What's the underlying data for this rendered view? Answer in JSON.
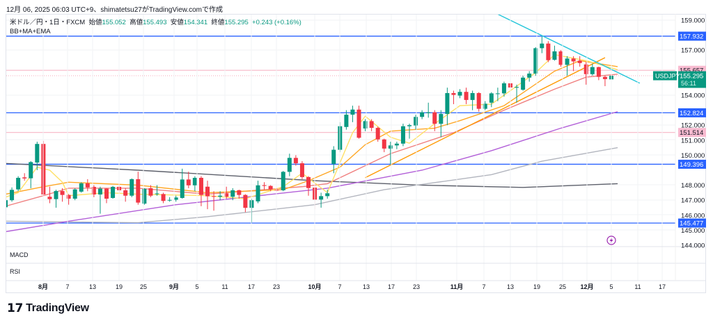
{
  "attribution": "12月 06, 2025 06:03 UTC+9、shimatetsu27がTradingView.comで作成",
  "legend": {
    "symbol_line": "米ドル／円・1日・FXCM",
    "open_label": "始値",
    "open": "155.052",
    "high_label": "高値",
    "high": "155.493",
    "low_label": "安値",
    "low": "154.341",
    "close_label": "終値",
    "close": "155.295",
    "change": "+0.243 (+0.16%)",
    "indicators": "BB+MA+EMA"
  },
  "panes": {
    "macd": "MACD",
    "rsi": "RSI"
  },
  "logo": "TradingView",
  "colors": {
    "up": "#089981",
    "down": "#f23645",
    "support": "#2962ff",
    "pink_level": "#f7b6c6",
    "trendline": "#26c6da"
  },
  "chart_data": {
    "type": "candlestick",
    "symbol": "USDJPY",
    "last_price": "155.295",
    "countdown": "56:11",
    "y_ticks": [
      "159.000",
      "157.000",
      "154.000",
      "152.000",
      "151.000",
      "150.000",
      "148.000",
      "147.000",
      "146.000",
      "145.000",
      "144.000"
    ],
    "ylim": [
      143.9,
      159.5
    ],
    "x_ticks": [
      "8月",
      "7",
      "13",
      "19",
      "25",
      "9月",
      "5",
      "11",
      "17",
      "23",
      "10月",
      "7",
      "13",
      "17",
      "23",
      "11月",
      "7",
      "13",
      "19",
      "25",
      "12月",
      "5",
      "11",
      "17"
    ],
    "horizontal_levels": [
      {
        "value": "157.932",
        "color": "#2962ff"
      },
      {
        "value": "155.657",
        "color": "#f7b6c6"
      },
      {
        "value": "152.824",
        "color": "#2962ff"
      },
      {
        "value": "151.514",
        "color": "#f7b6c6"
      },
      {
        "value": "149.396",
        "color": "#2962ff"
      },
      {
        "value": "145.477",
        "color": "#2962ff"
      }
    ],
    "ohlc": [
      [
        146.53,
        147.1,
        146.4,
        147.0
      ],
      [
        147.0,
        147.85,
        146.9,
        147.69
      ],
      [
        147.72,
        148.6,
        147.6,
        148.49
      ],
      [
        148.52,
        148.8,
        148.3,
        148.45
      ],
      [
        148.46,
        149.6,
        147.8,
        149.54
      ],
      [
        149.51,
        150.9,
        149.0,
        150.75
      ],
      [
        150.75,
        150.95,
        147.3,
        147.38
      ],
      [
        147.23,
        147.9,
        146.8,
        147.07
      ],
      [
        147.07,
        147.7,
        146.5,
        147.61
      ],
      [
        147.61,
        147.8,
        146.9,
        147.35
      ],
      [
        147.35,
        147.4,
        146.7,
        147.1
      ],
      [
        147.1,
        147.8,
        147.0,
        147.72
      ],
      [
        147.57,
        148.2,
        147.5,
        148.12
      ],
      [
        148.12,
        148.4,
        147.6,
        147.85
      ],
      [
        147.89,
        148.0,
        147.2,
        147.38
      ],
      [
        147.38,
        147.9,
        146.1,
        147.77
      ],
      [
        147.77,
        147.8,
        146.8,
        147.1
      ],
      [
        147.15,
        147.95,
        147.1,
        147.89
      ],
      [
        147.89,
        148.0,
        147.5,
        147.66
      ],
      [
        147.66,
        147.8,
        146.9,
        147.3
      ],
      [
        147.3,
        148.45,
        147.2,
        148.4
      ],
      [
        148.4,
        148.9,
        146.7,
        146.84
      ],
      [
        146.77,
        147.8,
        146.7,
        147.76
      ],
      [
        147.8,
        148.0,
        147.2,
        147.3
      ],
      [
        147.4,
        148.0,
        147.3,
        147.45
      ],
      [
        147.41,
        147.5,
        146.8,
        146.95
      ],
      [
        146.98,
        147.2,
        146.9,
        147.02
      ],
      [
        147.03,
        147.3,
        146.9,
        147.18
      ],
      [
        147.15,
        149.1,
        147.1,
        148.38
      ],
      [
        148.38,
        148.9,
        147.8,
        147.99
      ],
      [
        147.99,
        148.6,
        147.6,
        148.49
      ],
      [
        148.49,
        148.6,
        146.6,
        147.35
      ],
      [
        147.9,
        148.3,
        146.4,
        147.26
      ],
      [
        147.27,
        147.6,
        146.3,
        147.23
      ],
      [
        147.23,
        147.6,
        147.0,
        147.3
      ],
      [
        147.46,
        147.9,
        147.1,
        147.23
      ],
      [
        147.23,
        147.8,
        147.0,
        147.66
      ],
      [
        147.66,
        147.7,
        147.1,
        147.35
      ],
      [
        147.35,
        147.4,
        146.2,
        146.49
      ],
      [
        146.49,
        147.1,
        145.5,
        147.0
      ],
      [
        146.92,
        148.3,
        146.8,
        147.99
      ],
      [
        148.0,
        148.2,
        147.7,
        147.95
      ],
      [
        147.95,
        148.0,
        147.6,
        147.72
      ],
      [
        147.7,
        147.8,
        147.6,
        147.65
      ],
      [
        147.66,
        148.95,
        147.6,
        148.89
      ],
      [
        148.89,
        150.1,
        148.6,
        149.82
      ],
      [
        149.82,
        150.0,
        149.3,
        149.46
      ],
      [
        149.46,
        149.6,
        148.4,
        148.54
      ],
      [
        148.54,
        148.6,
        147.3,
        147.81
      ],
      [
        147.84,
        148.1,
        146.4,
        147.04
      ],
      [
        147.04,
        147.5,
        146.5,
        147.27
      ],
      [
        147.27,
        147.7,
        147.1,
        147.46
      ],
      [
        149.42,
        150.6,
        148.8,
        150.36
      ],
      [
        150.36,
        152.2,
        150.2,
        151.93
      ],
      [
        151.88,
        153.0,
        151.7,
        152.7
      ],
      [
        152.7,
        153.3,
        152.2,
        153.04
      ],
      [
        153.04,
        153.3,
        151.1,
        151.16
      ],
      [
        151.78,
        152.4,
        151.6,
        152.27
      ],
      [
        152.27,
        152.4,
        151.6,
        151.82
      ],
      [
        151.82,
        151.9,
        150.9,
        151.05
      ],
      [
        151.05,
        151.1,
        150.2,
        150.44
      ],
      [
        150.44,
        150.9,
        149.4,
        150.65
      ],
      [
        150.65,
        150.9,
        150.4,
        150.77
      ],
      [
        150.77,
        152.1,
        150.6,
        151.93
      ],
      [
        151.93,
        152.1,
        151.1,
        152.0
      ],
      [
        151.98,
        152.7,
        151.7,
        152.55
      ],
      [
        152.55,
        153.0,
        152.4,
        152.86
      ],
      [
        152.8,
        153.5,
        152.5,
        152.86
      ],
      [
        152.86,
        153.0,
        151.6,
        152.09
      ],
      [
        152.09,
        153.0,
        151.2,
        152.75
      ],
      [
        152.75,
        154.5,
        152.0,
        154.14
      ],
      [
        154.14,
        154.3,
        153.4,
        154.02
      ],
      [
        153.97,
        154.4,
        153.8,
        154.22
      ],
      [
        154.22,
        154.5,
        153.4,
        153.68
      ],
      [
        153.68,
        154.3,
        153.0,
        154.14
      ],
      [
        154.14,
        154.2,
        152.9,
        153.09
      ],
      [
        153.09,
        153.6,
        153.0,
        153.43
      ],
      [
        153.5,
        154.2,
        153.2,
        154.12
      ],
      [
        154.1,
        154.5,
        153.6,
        154.12
      ],
      [
        154.12,
        154.9,
        153.9,
        154.79
      ],
      [
        154.79,
        154.9,
        154.3,
        154.51
      ],
      [
        154.5,
        154.7,
        153.5,
        154.55
      ],
      [
        154.36,
        155.3,
        154.3,
        155.17
      ],
      [
        155.17,
        155.6,
        154.9,
        155.44
      ],
      [
        155.44,
        157.2,
        155.3,
        157.13
      ],
      [
        157.13,
        157.9,
        156.8,
        157.44
      ],
      [
        157.44,
        157.6,
        156.2,
        156.33
      ],
      [
        156.36,
        157.3,
        156.3,
        156.92
      ],
      [
        156.92,
        157.0,
        155.9,
        156.02
      ],
      [
        156.02,
        156.6,
        155.3,
        156.44
      ],
      [
        156.44,
        156.6,
        155.6,
        156.25
      ],
      [
        156.3,
        156.6,
        155.9,
        156.14
      ],
      [
        156.05,
        156.2,
        154.7,
        155.4
      ],
      [
        155.4,
        156.1,
        155.3,
        155.87
      ],
      [
        155.87,
        155.9,
        155.0,
        155.22
      ],
      [
        155.22,
        155.3,
        154.6,
        155.07
      ],
      [
        155.052,
        155.493,
        154.341,
        155.295
      ]
    ],
    "series": [
      {
        "color": "#5d606b",
        "points": [
          [
            0,
            149.45
          ],
          [
            21,
            149.0
          ],
          [
            49,
            148.3
          ],
          [
            66,
            148.0
          ],
          [
            82,
            147.85
          ],
          [
            97,
            148.1
          ]
        ]
      },
      {
        "color": "#b2b5be",
        "points": [
          [
            0,
            145.6
          ],
          [
            21,
            145.5
          ],
          [
            32,
            145.9
          ],
          [
            49,
            146.7
          ],
          [
            60,
            147.7
          ],
          [
            77,
            148.7
          ],
          [
            85,
            149.6
          ],
          [
            97,
            150.5
          ]
        ]
      },
      {
        "color": "#b25fd8",
        "points": [
          [
            0,
            144.9
          ],
          [
            10,
            145.6
          ],
          [
            27,
            146.7
          ],
          [
            38,
            147.2
          ],
          [
            51,
            147.8
          ],
          [
            66,
            149.0
          ],
          [
            77,
            150.3
          ],
          [
            88,
            151.8
          ],
          [
            97,
            152.9
          ]
        ]
      },
      {
        "color": "#f08080",
        "points": [
          [
            0,
            146.6
          ],
          [
            6,
            147.3
          ],
          [
            10,
            147.8
          ],
          [
            21,
            147.8
          ],
          [
            32,
            147.4
          ],
          [
            47,
            147.9
          ],
          [
            51,
            148.1
          ],
          [
            57,
            149.3
          ],
          [
            61,
            150.1
          ],
          [
            71,
            151.5
          ],
          [
            79,
            153.0
          ],
          [
            87,
            154.4
          ],
          [
            92,
            155.2
          ],
          [
            97,
            155.4
          ]
        ]
      },
      {
        "color": "#ffa726",
        "points": [
          [
            0,
            147.4
          ],
          [
            6,
            147.9
          ],
          [
            10,
            148.2
          ],
          [
            21,
            148.0
          ],
          [
            32,
            147.5
          ],
          [
            44,
            147.7
          ],
          [
            48,
            148.3
          ],
          [
            53,
            149.2
          ],
          [
            57,
            150.7
          ],
          [
            61,
            151.6
          ],
          [
            68,
            151.8
          ],
          [
            72,
            152.3
          ],
          [
            79,
            153.3
          ],
          [
            87,
            155.6
          ],
          [
            91,
            156.3
          ],
          [
            97,
            155.9
          ]
        ]
      },
      {
        "color": "#ffe066",
        "points": [
          [
            0,
            147.2
          ],
          [
            2,
            147.5
          ],
          [
            5,
            149.2
          ],
          [
            7,
            149.0
          ],
          [
            9,
            148.2
          ],
          [
            10,
            147.3
          ],
          [
            16,
            147.5
          ],
          [
            21,
            147.4
          ],
          [
            32,
            147.3
          ],
          [
            38,
            147.1
          ],
          [
            44,
            147.9
          ],
          [
            47,
            148.8
          ],
          [
            51,
            147.5
          ],
          [
            55,
            151.5
          ],
          [
            57,
            152.6
          ],
          [
            61,
            151.2
          ],
          [
            64,
            150.8
          ],
          [
            68,
            152.1
          ],
          [
            72,
            153.3
          ],
          [
            77,
            153.4
          ],
          [
            84,
            155.5
          ],
          [
            87,
            156.7
          ],
          [
            92,
            156.3
          ],
          [
            97,
            155.7
          ]
        ]
      }
    ],
    "trendlines": [
      {
        "color": "#ff9800",
        "from": [
          57,
          148.5
        ],
        "to": [
          95,
          156.5
        ]
      },
      {
        "color": "#26c6da",
        "from": [
          78,
          159.4
        ],
        "to": [
          100.5,
          154.8
        ]
      }
    ]
  }
}
